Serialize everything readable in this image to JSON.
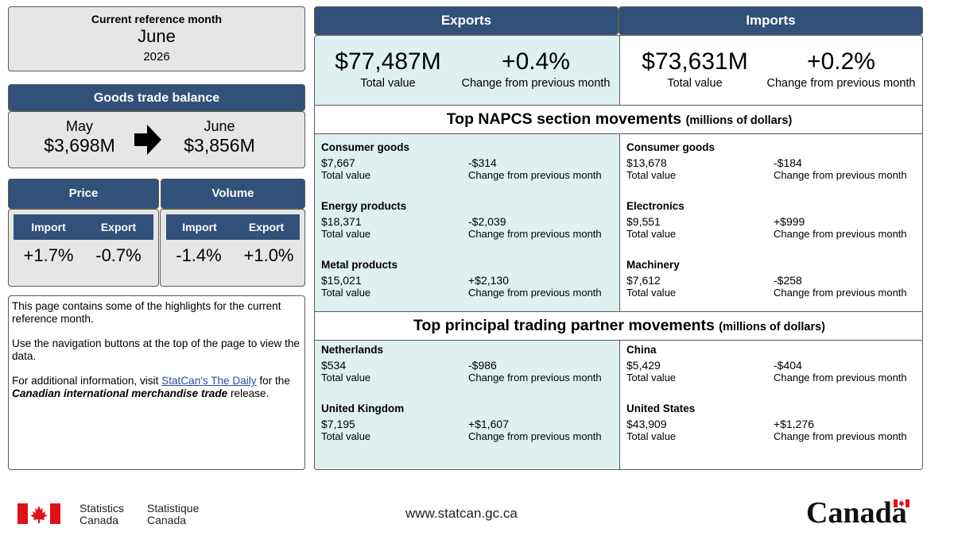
{
  "reference": {
    "label": "Current reference month",
    "month": "June",
    "year": "2026"
  },
  "balance": {
    "title": "Goods trade balance",
    "prev_month": "May",
    "prev_value": "$3,698M",
    "cur_month": "June",
    "cur_value": "$3,856M"
  },
  "price": {
    "title": "Price",
    "import_label": "Import",
    "export_label": "Export",
    "import_value": "+1.7%",
    "export_value": "-0.7%"
  },
  "volume": {
    "title": "Volume",
    "import_label": "Import",
    "export_label": "Export",
    "import_value": "-1.4%",
    "export_value": "+1.0%"
  },
  "info": {
    "p1": "This page contains some of the highlights for the current reference month.",
    "p2": "Use the navigation buttons at the top of the page to view the data.",
    "p3_pre": "For additional information, visit ",
    "p3_link": "StatCan's The Daily",
    "p3_mid": " for the ",
    "p3_release": "Canadian international merchandise trade",
    "p3_post": " release."
  },
  "exports": {
    "title": "Exports",
    "total": "$77,487M",
    "total_label": "Total value",
    "change": "+0.4%",
    "change_label": "Change from previous month"
  },
  "imports": {
    "title": "Imports",
    "total": "$73,631M",
    "total_label": "Total value",
    "change": "+0.2%",
    "change_label": "Change from previous month"
  },
  "napcs": {
    "title": "Top NAPCS section movements",
    "unit": "(millions of dollars)",
    "exports": [
      {
        "name": "Consumer goods",
        "value": "$7,667",
        "change": "-$314"
      },
      {
        "name": "Energy products",
        "value": "$18,371",
        "change": "-$2,039"
      },
      {
        "name": "Metal products",
        "value": "$15,021",
        "change": "+$2,130"
      }
    ],
    "imports": [
      {
        "name": "Consumer goods",
        "value": "$13,678",
        "change": "-$184"
      },
      {
        "name": "Electronics",
        "value": "$9,551",
        "change": "+$999"
      },
      {
        "name": "Machinery",
        "value": "$7,612",
        "change": "-$258"
      }
    ]
  },
  "partners": {
    "title": "Top principal trading partner movements",
    "unit": "(millions of dollars)",
    "exports": [
      {
        "name": "Netherlands",
        "value": "$534",
        "change": "-$986"
      },
      {
        "name": "United Kingdom",
        "value": "$7,195",
        "change": "+$1,607"
      }
    ],
    "imports": [
      {
        "name": "China",
        "value": "$5,429",
        "change": "-$404"
      },
      {
        "name": "United States",
        "value": "$43,909",
        "change": "+$1,276"
      }
    ]
  },
  "captions": {
    "total": "Total value",
    "change": "Change from previous month"
  },
  "footer": {
    "sc_en_1": "Statistics",
    "sc_en_2": "Canada",
    "sc_fr_1": "Statistique",
    "sc_fr_2": "Canada",
    "site": "www.statcan.gc.ca",
    "wordmark": "Canada"
  },
  "colors": {
    "navy": "#31507a",
    "teal": "#dff0f0",
    "grey": "#e6e6e6",
    "flag_red": "#e0101a",
    "link": "#2a4ea5"
  },
  "icons": {
    "balance_arrow": "right-arrow-icon",
    "flag": "canada-flag-icon"
  }
}
